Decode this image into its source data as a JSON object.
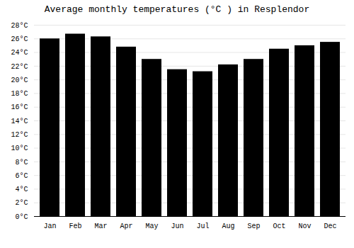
{
  "chart_data": {
    "type": "bar",
    "title": "Average monthly temperatures (°C ) in Resplendor",
    "categories": [
      "Jan",
      "Feb",
      "Mar",
      "Apr",
      "May",
      "Jun",
      "Jul",
      "Aug",
      "Sep",
      "Oct",
      "Nov",
      "Dec"
    ],
    "values": [
      26.0,
      26.7,
      26.3,
      24.8,
      23.0,
      21.5,
      21.2,
      22.2,
      23.0,
      24.5,
      25.0,
      25.5
    ],
    "ylim": [
      0,
      28
    ],
    "yticks": [
      {
        "value": 0,
        "label": "0°C"
      },
      {
        "value": 2,
        "label": "2°C"
      },
      {
        "value": 4,
        "label": "4°C"
      },
      {
        "value": 6,
        "label": "6°C"
      },
      {
        "value": 8,
        "label": "8°C"
      },
      {
        "value": 10,
        "label": "10°C"
      },
      {
        "value": 12,
        "label": "12°C"
      },
      {
        "value": 14,
        "label": "14°C"
      },
      {
        "value": 16,
        "label": "16°C"
      },
      {
        "value": 18,
        "label": "18°C"
      },
      {
        "value": 20,
        "label": "20°C"
      },
      {
        "value": 22,
        "label": "22°C"
      },
      {
        "value": 24,
        "label": "24°C"
      },
      {
        "value": 26,
        "label": "26°C"
      },
      {
        "value": 28,
        "label": "28°C"
      }
    ],
    "grid": true
  }
}
